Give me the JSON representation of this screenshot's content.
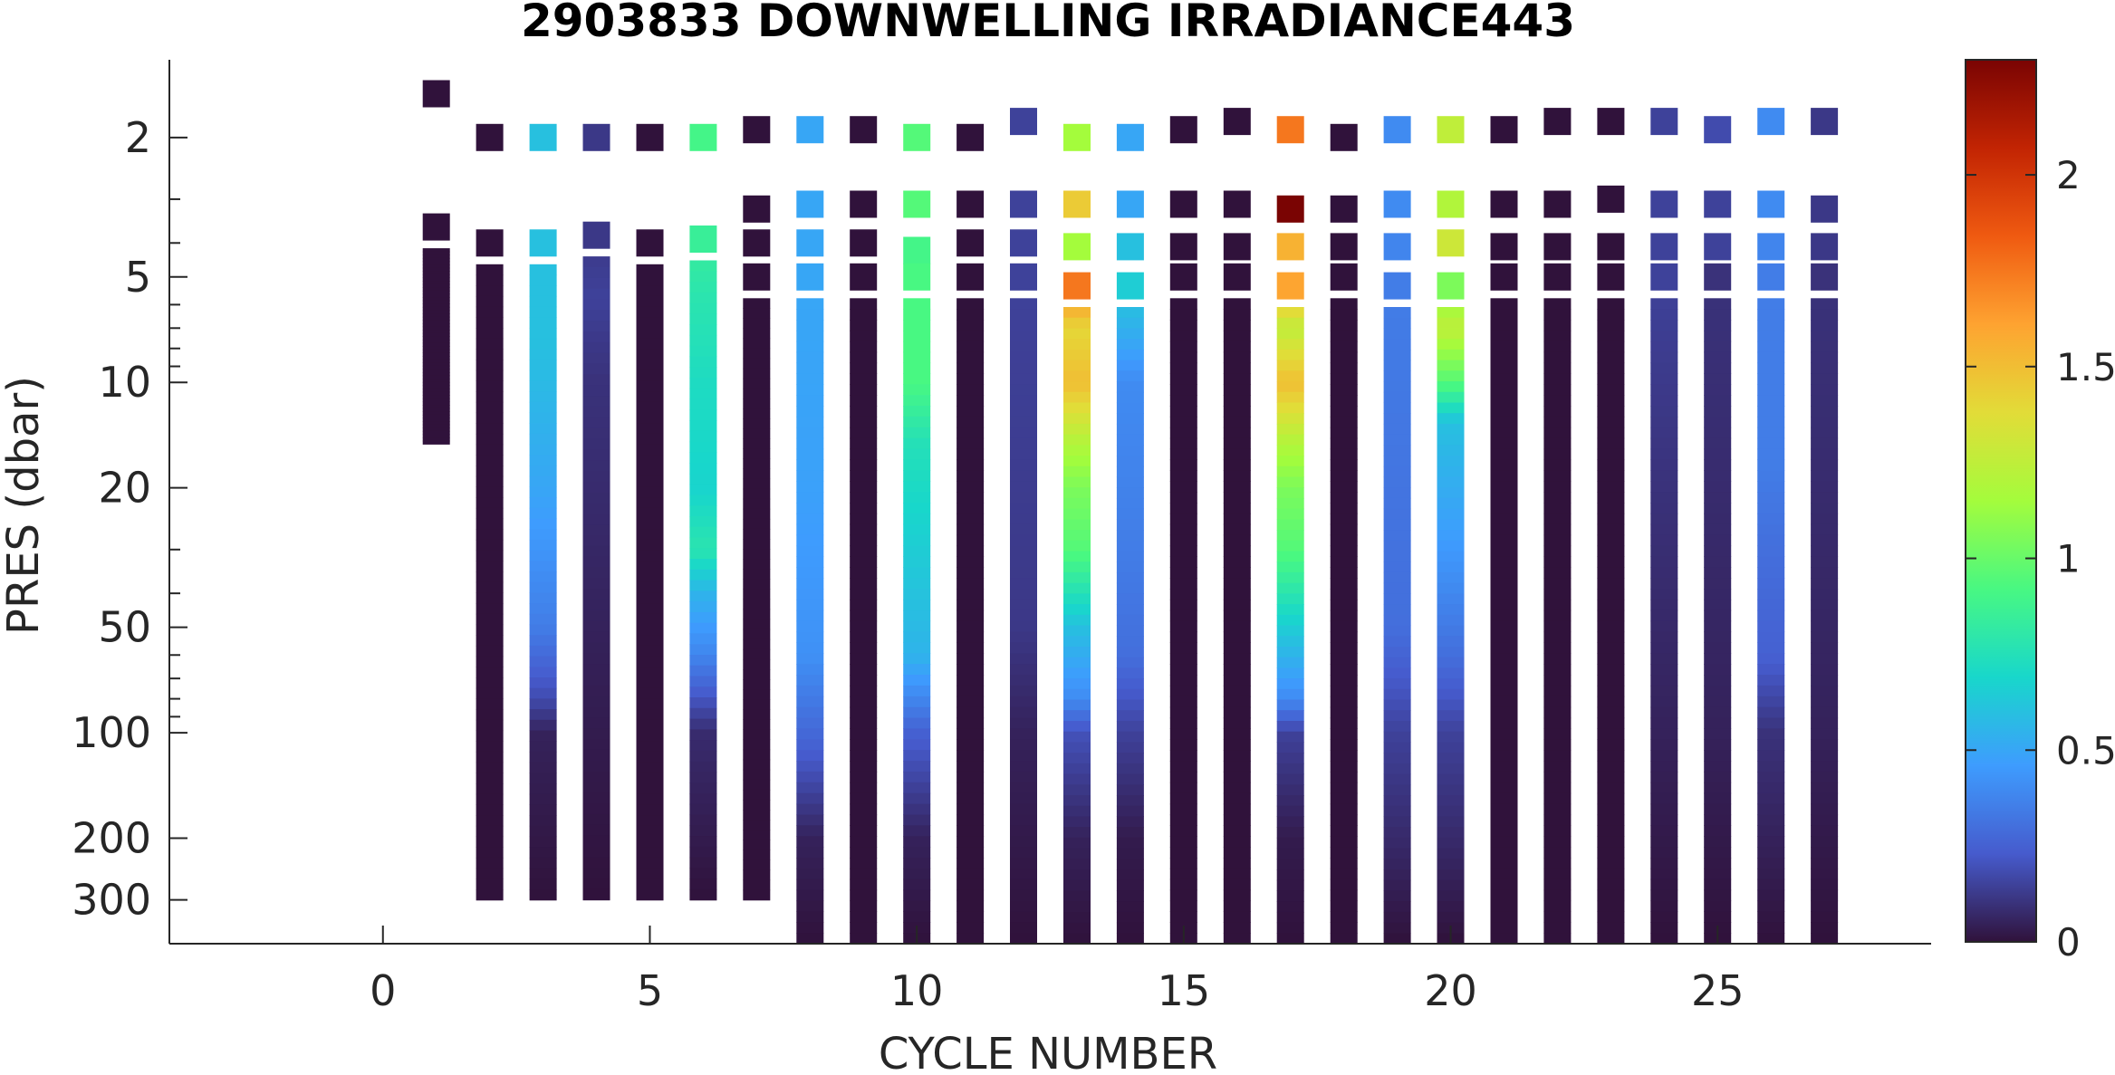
{
  "chart_data": {
    "type": "heatmap",
    "title": "2903833  DOWNWELLING IRRADIANCE443",
    "xlabel": "CYCLE NUMBER",
    "ylabel": "PRES (dbar)",
    "xlim": [
      -4,
      29
    ],
    "xticks": [
      0,
      5,
      10,
      15,
      20,
      25
    ],
    "x_tick_labels": [
      "0",
      "5",
      "10",
      "15",
      "20",
      "25"
    ],
    "ylim": [
      1.2,
      400
    ],
    "yscale": "log",
    "y_reversed": true,
    "yticks": [
      2,
      5,
      10,
      20,
      50,
      100,
      200,
      300
    ],
    "y_tick_labels": [
      "2",
      "5",
      "10",
      "20",
      "50",
      "100",
      "200",
      "300"
    ],
    "y_minor_ticks": [
      3,
      4,
      6,
      7,
      8,
      9,
      30,
      40,
      60,
      70,
      80,
      90
    ],
    "colorbar": {
      "colormap": "turbo",
      "range": [
        0,
        2.3
      ],
      "ticks": [
        0,
        0.5,
        1,
        1.5,
        2
      ],
      "tick_labels": [
        "0",
        "0.5",
        "1",
        "1.5",
        "2"
      ]
    },
    "profiles": [
      {
        "cycle": 1,
        "bottom": 15,
        "samples": [
          [
            1.5,
            0.0
          ],
          [
            3.6,
            0.0
          ],
          [
            5.8,
            0.0
          ],
          [
            7.5,
            0.0
          ],
          [
            9.5,
            0.0
          ],
          [
            12,
            0.0
          ],
          [
            15,
            0.0
          ]
        ]
      },
      {
        "cycle": 2,
        "bottom": 300,
        "samples": [
          [
            2.0,
            0.0
          ],
          [
            4.0,
            0.0
          ],
          [
            5.9,
            0.0
          ],
          [
            7.6,
            0.0
          ],
          [
            9.6,
            0.0
          ],
          [
            15,
            0.0
          ],
          [
            50,
            0.0
          ],
          [
            300,
            0.0
          ]
        ]
      },
      {
        "cycle": 3,
        "bottom": 300,
        "samples": [
          [
            2.0,
            0.6
          ],
          [
            4.0,
            0.6
          ],
          [
            5.8,
            0.6
          ],
          [
            7.6,
            0.6
          ],
          [
            9.5,
            0.58
          ],
          [
            20,
            0.5
          ],
          [
            50,
            0.35
          ],
          [
            80,
            0.18
          ],
          [
            100,
            0.05
          ],
          [
            300,
            0.0
          ]
        ]
      },
      {
        "cycle": 4,
        "bottom": 300,
        "samples": [
          [
            2.0,
            0.12
          ],
          [
            3.8,
            0.12
          ],
          [
            5.8,
            0.15
          ],
          [
            7.7,
            0.12
          ],
          [
            10,
            0.1
          ],
          [
            20,
            0.08
          ],
          [
            50,
            0.05
          ],
          [
            300,
            0.0
          ]
        ]
      },
      {
        "cycle": 5,
        "bottom": 300,
        "samples": [
          [
            2.0,
            0.0
          ],
          [
            4.0,
            0.0
          ],
          [
            5.9,
            0.0
          ],
          [
            7.6,
            0.0
          ],
          [
            9.6,
            0.0
          ],
          [
            300,
            0.0
          ]
        ]
      },
      {
        "cycle": 6,
        "bottom": 300,
        "samples": [
          [
            2.0,
            0.9
          ],
          [
            3.9,
            0.85
          ],
          [
            5.7,
            0.78
          ],
          [
            7.6,
            0.75
          ],
          [
            10,
            0.72
          ],
          [
            20,
            0.68
          ],
          [
            30,
            0.78
          ],
          [
            40,
            0.55
          ],
          [
            60,
            0.38
          ],
          [
            100,
            0.08
          ],
          [
            300,
            0.0
          ]
        ]
      },
      {
        "cycle": 7,
        "bottom": 300,
        "samples": [
          [
            1.9,
            0.0
          ],
          [
            3.2,
            0.0
          ],
          [
            4.0,
            0.0
          ],
          [
            5,
            0.0
          ],
          [
            300,
            0.0
          ]
        ]
      },
      {
        "cycle": 8,
        "bottom": 400,
        "samples": [
          [
            1.9,
            0.5
          ],
          [
            3.1,
            0.5
          ],
          [
            4.0,
            0.5
          ],
          [
            5,
            0.5
          ],
          [
            20,
            0.48
          ],
          [
            60,
            0.42
          ],
          [
            100,
            0.28
          ],
          [
            200,
            0.05
          ],
          [
            400,
            0.0
          ]
        ]
      },
      {
        "cycle": 9,
        "bottom": 400,
        "samples": [
          [
            1.9,
            0.0
          ],
          [
            3.1,
            0.0
          ],
          [
            4.0,
            0.0
          ],
          [
            5,
            0.0
          ],
          [
            400,
            0.0
          ]
        ]
      },
      {
        "cycle": 10,
        "bottom": 400,
        "samples": [
          [
            2.0,
            0.95
          ],
          [
            3.1,
            0.95
          ],
          [
            4.2,
            0.9
          ],
          [
            5,
            0.92
          ],
          [
            10,
            0.92
          ],
          [
            15,
            0.75
          ],
          [
            30,
            0.65
          ],
          [
            60,
            0.55
          ],
          [
            100,
            0.25
          ],
          [
            200,
            0.05
          ],
          [
            400,
            0.0
          ]
        ]
      },
      {
        "cycle": 11,
        "bottom": 400,
        "samples": [
          [
            2.0,
            0.0
          ],
          [
            3.1,
            0.0
          ],
          [
            4.0,
            0.0
          ],
          [
            5,
            0.0
          ],
          [
            400,
            0.0
          ]
        ]
      },
      {
        "cycle": 12,
        "bottom": 400,
        "samples": [
          [
            1.8,
            0.15
          ],
          [
            3.1,
            0.15
          ],
          [
            4.0,
            0.15
          ],
          [
            5,
            0.15
          ],
          [
            50,
            0.12
          ],
          [
            100,
            0.05
          ],
          [
            400,
            0.0
          ]
        ]
      },
      {
        "cycle": 13,
        "bottom": 400,
        "samples": [
          [
            2.0,
            1.15
          ],
          [
            3.1,
            1.45
          ],
          [
            4.1,
            1.15
          ],
          [
            5.3,
            1.75
          ],
          [
            7,
            1.4
          ],
          [
            10,
            1.5
          ],
          [
            15,
            1.2
          ],
          [
            20,
            1.05
          ],
          [
            30,
            0.95
          ],
          [
            50,
            0.6
          ],
          [
            80,
            0.4
          ],
          [
            100,
            0.2
          ],
          [
            200,
            0.05
          ],
          [
            400,
            0.0
          ]
        ]
      },
      {
        "cycle": 14,
        "bottom": 400,
        "samples": [
          [
            2.0,
            0.5
          ],
          [
            3.1,
            0.5
          ],
          [
            4.1,
            0.6
          ],
          [
            5.3,
            0.65
          ],
          [
            10,
            0.4
          ],
          [
            30,
            0.35
          ],
          [
            60,
            0.3
          ],
          [
            100,
            0.15
          ],
          [
            200,
            0.03
          ],
          [
            400,
            0.0
          ]
        ]
      },
      {
        "cycle": 15,
        "bottom": 400,
        "samples": [
          [
            1.9,
            0.0
          ],
          [
            3.1,
            0.0
          ],
          [
            4.1,
            0.0
          ],
          [
            5,
            0.0
          ],
          [
            400,
            0.0
          ]
        ]
      },
      {
        "cycle": 16,
        "bottom": 400,
        "samples": [
          [
            1.8,
            0.0
          ],
          [
            3.1,
            0.0
          ],
          [
            4.1,
            0.0
          ],
          [
            5,
            0.0
          ],
          [
            400,
            0.0
          ]
        ]
      },
      {
        "cycle": 17,
        "bottom": 400,
        "samples": [
          [
            1.9,
            1.75
          ],
          [
            3.2,
            2.3
          ],
          [
            4.1,
            1.55
          ],
          [
            5.3,
            1.6
          ],
          [
            7,
            1.25
          ],
          [
            10,
            1.5
          ],
          [
            15,
            1.2
          ],
          [
            20,
            1.05
          ],
          [
            30,
            0.95
          ],
          [
            50,
            0.65
          ],
          [
            80,
            0.4
          ],
          [
            100,
            0.15
          ],
          [
            200,
            0.03
          ],
          [
            400,
            0.0
          ]
        ]
      },
      {
        "cycle": 18,
        "bottom": 400,
        "samples": [
          [
            2.0,
            0.0
          ],
          [
            3.2,
            0.0
          ],
          [
            4.1,
            0.0
          ],
          [
            5,
            0.0
          ],
          [
            400,
            0.0
          ]
        ]
      },
      {
        "cycle": 19,
        "bottom": 400,
        "samples": [
          [
            1.9,
            0.4
          ],
          [
            3.1,
            0.4
          ],
          [
            4.1,
            0.38
          ],
          [
            5.3,
            0.35
          ],
          [
            50,
            0.3
          ],
          [
            100,
            0.15
          ],
          [
            400,
            0.0
          ]
        ]
      },
      {
        "cycle": 20,
        "bottom": 400,
        "samples": [
          [
            1.9,
            1.25
          ],
          [
            3.1,
            1.2
          ],
          [
            4.0,
            1.3
          ],
          [
            5.3,
            1.05
          ],
          [
            7,
            1.25
          ],
          [
            10,
            0.95
          ],
          [
            13,
            0.6
          ],
          [
            30,
            0.45
          ],
          [
            60,
            0.3
          ],
          [
            100,
            0.15
          ],
          [
            400,
            0.0
          ]
        ]
      },
      {
        "cycle": 21,
        "bottom": 400,
        "samples": [
          [
            1.9,
            0.0
          ],
          [
            3.1,
            0.0
          ],
          [
            4.1,
            0.0
          ],
          [
            5,
            0.0
          ],
          [
            400,
            0.0
          ]
        ]
      },
      {
        "cycle": 22,
        "bottom": 400,
        "samples": [
          [
            1.8,
            0.0
          ],
          [
            3.1,
            0.0
          ],
          [
            4.1,
            0.0
          ],
          [
            5,
            0.0
          ],
          [
            400,
            0.0
          ]
        ]
      },
      {
        "cycle": 23,
        "bottom": 400,
        "samples": [
          [
            1.8,
            0.0
          ],
          [
            3.0,
            0.0
          ],
          [
            4.1,
            0.0
          ],
          [
            5,
            0.0
          ],
          [
            400,
            0.0
          ]
        ]
      },
      {
        "cycle": 24,
        "bottom": 400,
        "samples": [
          [
            1.8,
            0.15
          ],
          [
            3.1,
            0.15
          ],
          [
            4.1,
            0.15
          ],
          [
            5,
            0.15
          ],
          [
            20,
            0.1
          ],
          [
            100,
            0.05
          ],
          [
            400,
            0.0
          ]
        ]
      },
      {
        "cycle": 25,
        "bottom": 400,
        "samples": [
          [
            1.9,
            0.18
          ],
          [
            3.1,
            0.15
          ],
          [
            4.1,
            0.15
          ],
          [
            5,
            0.1
          ],
          [
            20,
            0.08
          ],
          [
            100,
            0.05
          ],
          [
            400,
            0.0
          ]
        ]
      },
      {
        "cycle": 26,
        "bottom": 400,
        "samples": [
          [
            1.8,
            0.4
          ],
          [
            3.1,
            0.4
          ],
          [
            4.1,
            0.38
          ],
          [
            5,
            0.35
          ],
          [
            17,
            0.35
          ],
          [
            30,
            0.3
          ],
          [
            60,
            0.25
          ],
          [
            100,
            0.1
          ],
          [
            400,
            0.0
          ]
        ]
      },
      {
        "cycle": 27,
        "bottom": 400,
        "samples": [
          [
            1.8,
            0.12
          ],
          [
            3.2,
            0.12
          ],
          [
            4.1,
            0.12
          ],
          [
            5,
            0.1
          ],
          [
            20,
            0.08
          ],
          [
            100,
            0.05
          ],
          [
            400,
            0.0
          ]
        ]
      }
    ]
  }
}
